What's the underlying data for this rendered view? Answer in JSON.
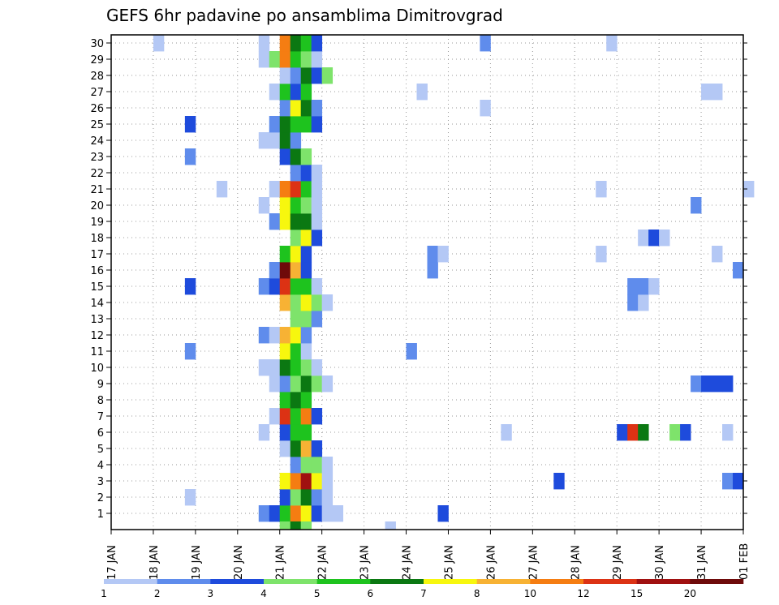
{
  "chart_data": {
    "type": "heatmap",
    "title": "GEFS 6hr padavine po ansamblima Dimitrovgrad",
    "xlabel": "",
    "ylabel": "",
    "x_tick_labels": [
      "17 JAN",
      "18 JAN",
      "19 JAN",
      "20 JAN",
      "21 JAN",
      "22 JAN",
      "23 JAN",
      "24 JAN",
      "25 JAN",
      "26 JAN",
      "27 JAN",
      "28 JAN",
      "29 JAN",
      "30 JAN",
      "31 JAN",
      "01 FEB"
    ],
    "x_range_days": [
      0,
      15
    ],
    "y_tick_labels": [
      "1",
      "2",
      "3",
      "4",
      "5",
      "6",
      "7",
      "8",
      "9",
      "10",
      "11",
      "12",
      "13",
      "14",
      "15",
      "16",
      "17",
      "18",
      "19",
      "20",
      "21",
      "22",
      "23",
      "24",
      "25",
      "26",
      "27",
      "28",
      "29",
      "30"
    ],
    "y_range": [
      0,
      30
    ],
    "grid": true,
    "time_step_days": 0.25,
    "colorbar": {
      "labels": [
        "1",
        "2",
        "3",
        "4",
        "5",
        "6",
        "7",
        "8",
        "10",
        "12",
        "15",
        "20"
      ],
      "colors": [
        "#b4c8f5",
        "#5f8cec",
        "#1e4bdc",
        "#7ee36b",
        "#1ec31e",
        "#0b7812",
        "#f7f70e",
        "#f7b234",
        "#f57d12",
        "#dc3214",
        "#a01010",
        "#6e0a0a"
      ]
    },
    "series": [
      {
        "member": 1,
        "cells": [
          [
            3.5,
            2
          ],
          [
            3.75,
            3
          ],
          [
            4,
            5
          ],
          [
            4.25,
            9
          ],
          [
            4.5,
            7
          ],
          [
            4.75,
            3
          ],
          [
            5,
            1
          ],
          [
            5.25,
            1
          ],
          [
            7.75,
            3
          ]
        ]
      },
      {
        "member": 2,
        "cells": [
          [
            1.75,
            1
          ],
          [
            4,
            3
          ],
          [
            4.25,
            4
          ],
          [
            4.5,
            6
          ],
          [
            4.75,
            2
          ],
          [
            5,
            1
          ]
        ]
      },
      {
        "member": 3,
        "cells": [
          [
            4,
            7
          ],
          [
            4.25,
            9
          ],
          [
            4.5,
            11
          ],
          [
            4.75,
            7
          ],
          [
            5,
            1
          ],
          [
            10.5,
            3
          ],
          [
            14.5,
            2
          ],
          [
            14.75,
            3
          ]
        ]
      },
      {
        "member": 4,
        "cells": [
          [
            4.25,
            2
          ],
          [
            4.5,
            4
          ],
          [
            4.75,
            4
          ],
          [
            5,
            1
          ]
        ]
      },
      {
        "member": 5,
        "cells": [
          [
            4,
            1
          ],
          [
            4.25,
            6
          ],
          [
            4.5,
            8
          ],
          [
            4.75,
            3
          ]
        ]
      },
      {
        "member": 6,
        "cells": [
          [
            3.5,
            1
          ],
          [
            4,
            3
          ],
          [
            4.25,
            5
          ],
          [
            4.5,
            5
          ],
          [
            9.25,
            1
          ],
          [
            12,
            3
          ],
          [
            12.25,
            10
          ],
          [
            12.5,
            6
          ],
          [
            13.25,
            4
          ],
          [
            13.5,
            3
          ],
          [
            14.5,
            1
          ]
        ]
      },
      {
        "member": 7,
        "cells": [
          [
            3.75,
            1
          ],
          [
            4,
            10
          ],
          [
            4.25,
            5
          ],
          [
            4.5,
            9
          ],
          [
            4.75,
            3
          ]
        ]
      },
      {
        "member": 8,
        "cells": [
          [
            4,
            5
          ],
          [
            4.25,
            6
          ],
          [
            4.5,
            5
          ]
        ]
      },
      {
        "member": 9,
        "cells": [
          [
            3.75,
            1
          ],
          [
            4,
            2
          ],
          [
            4.25,
            4
          ],
          [
            4.5,
            6
          ],
          [
            4.75,
            4
          ],
          [
            5,
            1
          ],
          [
            13.75,
            2
          ],
          [
            14,
            3
          ],
          [
            14.25,
            3
          ],
          [
            14.5,
            3
          ]
        ]
      },
      {
        "member": 10,
        "cells": [
          [
            3.5,
            1
          ],
          [
            3.75,
            1
          ],
          [
            4,
            6
          ],
          [
            4.25,
            5
          ],
          [
            4.5,
            4
          ],
          [
            4.75,
            1
          ]
        ]
      },
      {
        "member": 11,
        "cells": [
          [
            1.75,
            2
          ],
          [
            4,
            7
          ],
          [
            4.25,
            5
          ],
          [
            4.5,
            1
          ],
          [
            7,
            2
          ]
        ]
      },
      {
        "member": 12,
        "cells": [
          [
            3.5,
            2
          ],
          [
            3.75,
            1
          ],
          [
            4,
            8
          ],
          [
            4.25,
            7
          ],
          [
            4.5,
            2
          ]
        ]
      },
      {
        "member": 13,
        "cells": [
          [
            4.25,
            4
          ],
          [
            4.5,
            4
          ],
          [
            4.75,
            2
          ]
        ]
      },
      {
        "member": 14,
        "cells": [
          [
            4,
            8
          ],
          [
            4.25,
            4
          ],
          [
            4.5,
            7
          ],
          [
            4.75,
            4
          ],
          [
            5,
            1
          ],
          [
            12.25,
            2
          ],
          [
            12.5,
            1
          ]
        ]
      },
      {
        "member": 15,
        "cells": [
          [
            1.75,
            3
          ],
          [
            3.5,
            2
          ],
          [
            3.75,
            3
          ],
          [
            4,
            10
          ],
          [
            4.25,
            5
          ],
          [
            4.5,
            5
          ],
          [
            4.75,
            1
          ],
          [
            12.25,
            2
          ],
          [
            12.5,
            2
          ],
          [
            12.75,
            1
          ]
        ]
      },
      {
        "member": 16,
        "cells": [
          [
            3.75,
            2
          ],
          [
            4,
            12
          ],
          [
            4.25,
            8
          ],
          [
            4.5,
            3
          ],
          [
            7.5,
            2
          ],
          [
            14.75,
            2
          ]
        ]
      },
      {
        "member": 17,
        "cells": [
          [
            4,
            5
          ],
          [
            4.25,
            7
          ],
          [
            4.5,
            3
          ],
          [
            7.5,
            2
          ],
          [
            7.75,
            1
          ],
          [
            11.5,
            1
          ],
          [
            14.25,
            1
          ]
        ]
      },
      {
        "member": 18,
        "cells": [
          [
            4.25,
            4
          ],
          [
            4.5,
            7
          ],
          [
            4.75,
            3
          ],
          [
            12.5,
            1
          ],
          [
            12.75,
            3
          ],
          [
            13,
            1
          ]
        ]
      },
      {
        "member": 19,
        "cells": [
          [
            3.75,
            2
          ],
          [
            4,
            7
          ],
          [
            4.25,
            6
          ],
          [
            4.5,
            6
          ],
          [
            4.75,
            1
          ]
        ]
      },
      {
        "member": 20,
        "cells": [
          [
            3.5,
            1
          ],
          [
            4,
            7
          ],
          [
            4.25,
            5
          ],
          [
            4.5,
            4
          ],
          [
            4.75,
            1
          ],
          [
            13.75,
            2
          ]
        ]
      },
      {
        "member": 21,
        "cells": [
          [
            2.5,
            1
          ],
          [
            3.75,
            1
          ],
          [
            4,
            9
          ],
          [
            4.25,
            10
          ],
          [
            4.5,
            5
          ],
          [
            4.75,
            1
          ],
          [
            11.5,
            1
          ],
          [
            15,
            1
          ]
        ]
      },
      {
        "member": 22,
        "cells": [
          [
            4.25,
            2
          ],
          [
            4.5,
            3
          ],
          [
            4.75,
            1
          ]
        ]
      },
      {
        "member": 23,
        "cells": [
          [
            1.75,
            2
          ],
          [
            4,
            3
          ],
          [
            4.25,
            6
          ],
          [
            4.5,
            4
          ]
        ]
      },
      {
        "member": 24,
        "cells": [
          [
            3.5,
            1
          ],
          [
            3.75,
            1
          ],
          [
            4,
            6
          ],
          [
            4.25,
            2
          ]
        ]
      },
      {
        "member": 25,
        "cells": [
          [
            1.75,
            3
          ],
          [
            3.75,
            2
          ],
          [
            4,
            6
          ],
          [
            4.25,
            5
          ],
          [
            4.5,
            5
          ],
          [
            4.75,
            3
          ]
        ]
      },
      {
        "member": 26,
        "cells": [
          [
            4,
            2
          ],
          [
            4.25,
            7
          ],
          [
            4.5,
            6
          ],
          [
            4.75,
            2
          ],
          [
            8.75,
            1
          ]
        ]
      },
      {
        "member": 27,
        "cells": [
          [
            3.75,
            1
          ],
          [
            4,
            5
          ],
          [
            4.25,
            3
          ],
          [
            4.5,
            5
          ],
          [
            7.25,
            1
          ],
          [
            14,
            1
          ],
          [
            14.25,
            1
          ]
        ]
      },
      {
        "member": 28,
        "cells": [
          [
            4,
            1
          ],
          [
            4.25,
            2
          ],
          [
            4.5,
            6
          ],
          [
            4.75,
            3
          ],
          [
            5,
            4
          ]
        ]
      },
      {
        "member": 29,
        "cells": [
          [
            3.5,
            1
          ],
          [
            3.75,
            4
          ],
          [
            4,
            9
          ],
          [
            4.25,
            5
          ],
          [
            4.5,
            4
          ],
          [
            4.75,
            1
          ]
        ]
      },
      {
        "member": 30,
        "cells": [
          [
            1,
            1
          ],
          [
            3.5,
            1
          ],
          [
            4,
            9
          ],
          [
            4.25,
            6
          ],
          [
            4.5,
            5
          ],
          [
            4.75,
            3
          ],
          [
            8.75,
            2
          ],
          [
            11.75,
            1
          ]
        ]
      },
      {
        "member": 0,
        "cells": [
          [
            4,
            4
          ],
          [
            4.25,
            6
          ],
          [
            4.5,
            4
          ],
          [
            6.5,
            1
          ]
        ]
      }
    ]
  }
}
